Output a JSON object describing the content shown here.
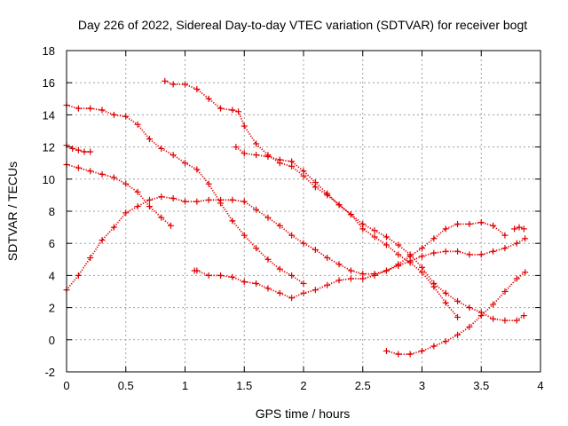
{
  "chart_data": {
    "type": "scatter",
    "title": "Day 226 of 2022, Sidereal Day-to-day VTEC variation (SDTVAR) for receiver bogt",
    "xlabel": "GPS time / hours",
    "ylabel": "SDTVAR / TECUs",
    "xlim": [
      0,
      4
    ],
    "ylim": [
      -2,
      18
    ],
    "xticks": [
      0,
      0.5,
      1,
      1.5,
      2,
      2.5,
      3,
      3.5,
      4
    ],
    "yticks": [
      -2,
      0,
      2,
      4,
      6,
      8,
      10,
      12,
      14,
      16,
      18
    ],
    "xtick_labels": [
      "0",
      "0.5",
      "1",
      "1.5",
      "2",
      "2.5",
      "3",
      "3.5",
      "4"
    ],
    "ytick_labels": [
      "-2",
      "0",
      "2",
      "4",
      "6",
      "8",
      "10",
      "12",
      "14",
      "16",
      "18"
    ],
    "grid": true,
    "marker": "+",
    "color": "#e00000",
    "series": [
      {
        "name": "s1",
        "x": [
          0.0,
          0.1,
          0.2,
          0.3,
          0.4,
          0.5,
          0.6,
          0.7,
          0.8,
          0.9,
          1.0,
          1.1,
          1.2,
          1.3,
          1.4,
          1.5,
          1.6,
          1.7,
          1.8,
          1.9,
          2.0
        ],
        "y": [
          14.6,
          14.4,
          14.4,
          14.3,
          14.0,
          13.9,
          13.4,
          12.5,
          11.9,
          11.5,
          11.0,
          10.6,
          9.7,
          8.5,
          7.4,
          6.5,
          5.7,
          5.0,
          4.4,
          4.0,
          3.5
        ]
      },
      {
        "name": "s2",
        "x": [
          0.0,
          0.05,
          0.1,
          0.15,
          0.2
        ],
        "y": [
          12.1,
          11.9,
          11.8,
          11.7,
          11.7
        ]
      },
      {
        "name": "s3",
        "x": [
          0.0,
          0.1,
          0.2,
          0.3,
          0.4,
          0.5,
          0.6,
          0.7,
          0.8,
          0.88
        ],
        "y": [
          10.9,
          10.7,
          10.5,
          10.3,
          10.1,
          9.7,
          9.2,
          8.3,
          7.6,
          7.1
        ]
      },
      {
        "name": "s4",
        "x": [
          0.0,
          0.1,
          0.2,
          0.3,
          0.4,
          0.5,
          0.6,
          0.7,
          0.8,
          0.9,
          1.0,
          1.1,
          1.2,
          1.3,
          1.4,
          1.5,
          1.6,
          1.7,
          1.8,
          1.9,
          2.0,
          2.1,
          2.2,
          2.3,
          2.4,
          2.5,
          2.6,
          2.7,
          2.8,
          2.9,
          3.0,
          3.1,
          3.2,
          3.3,
          3.4,
          3.5,
          3.6,
          3.7
        ],
        "y": [
          3.1,
          4.0,
          5.1,
          6.2,
          7.0,
          7.9,
          8.3,
          8.7,
          8.9,
          8.8,
          8.6,
          8.6,
          8.7,
          8.7,
          8.7,
          8.6,
          8.1,
          7.6,
          7.1,
          6.5,
          6.0,
          5.6,
          5.1,
          4.7,
          4.3,
          4.1,
          4.1,
          4.3,
          4.7,
          5.2,
          5.7,
          6.3,
          6.9,
          7.2,
          7.2,
          7.3,
          7.1,
          6.5
        ]
      },
      {
        "name": "s5",
        "x": [
          0.83,
          0.9,
          1.0,
          1.1,
          1.2,
          1.3,
          1.4,
          1.45,
          1.5,
          1.6,
          1.7,
          1.8,
          1.9,
          2.0,
          2.1,
          2.2,
          2.3,
          2.4,
          2.5,
          2.6,
          2.7,
          2.8,
          2.9,
          3.0,
          3.1,
          3.2,
          3.3
        ],
        "y": [
          16.1,
          15.9,
          15.9,
          15.6,
          15.0,
          14.4,
          14.3,
          14.2,
          13.3,
          12.2,
          11.5,
          11.0,
          10.8,
          10.2,
          9.5,
          9.0,
          8.4,
          7.8,
          6.9,
          6.4,
          5.9,
          5.3,
          4.8,
          4.2,
          3.3,
          2.3,
          1.4
        ]
      },
      {
        "name": "s6",
        "x": [
          1.43,
          1.5,
          1.6,
          1.7,
          1.8,
          1.9,
          2.0,
          2.1,
          2.2,
          2.3,
          2.4,
          2.5,
          2.6,
          2.7,
          2.8,
          2.9,
          3.0,
          3.1,
          3.2,
          3.3,
          3.4,
          3.5,
          3.6,
          3.7,
          3.8,
          3.86
        ],
        "y": [
          12.0,
          11.6,
          11.5,
          11.4,
          11.2,
          11.1,
          10.5,
          9.8,
          9.1,
          8.4,
          7.8,
          7.2,
          6.8,
          6.4,
          5.9,
          5.3,
          4.5,
          3.5,
          2.9,
          2.4,
          2.0,
          1.7,
          1.3,
          1.2,
          1.2,
          1.5
        ]
      },
      {
        "name": "s7",
        "x": [
          1.08,
          1.1,
          1.2,
          1.3,
          1.4,
          1.5,
          1.6,
          1.7,
          1.8,
          1.9,
          2.0,
          2.1,
          2.2,
          2.3,
          2.4,
          2.5,
          2.6,
          2.7,
          2.8,
          2.9,
          3.0,
          3.1,
          3.2,
          3.3,
          3.4,
          3.5,
          3.6,
          3.7,
          3.8,
          3.87
        ],
        "y": [
          4.3,
          4.3,
          4.0,
          4.0,
          3.9,
          3.6,
          3.5,
          3.2,
          2.9,
          2.6,
          2.9,
          3.1,
          3.4,
          3.7,
          3.8,
          3.8,
          4.0,
          4.3,
          4.6,
          4.9,
          5.2,
          5.4,
          5.5,
          5.5,
          5.3,
          5.3,
          5.5,
          5.7,
          6.0,
          6.3
        ]
      },
      {
        "name": "s8",
        "x": [
          2.7,
          2.8,
          2.9,
          3.0,
          3.1,
          3.2,
          3.3,
          3.4,
          3.5,
          3.6,
          3.7,
          3.8,
          3.87
        ],
        "y": [
          -0.7,
          -0.9,
          -0.9,
          -0.7,
          -0.4,
          -0.1,
          0.3,
          0.8,
          1.5,
          2.2,
          3.0,
          3.8,
          4.2
        ]
      },
      {
        "name": "s9",
        "x": [
          3.78,
          3.82,
          3.86
        ],
        "y": [
          6.9,
          7.0,
          6.9
        ]
      }
    ]
  }
}
